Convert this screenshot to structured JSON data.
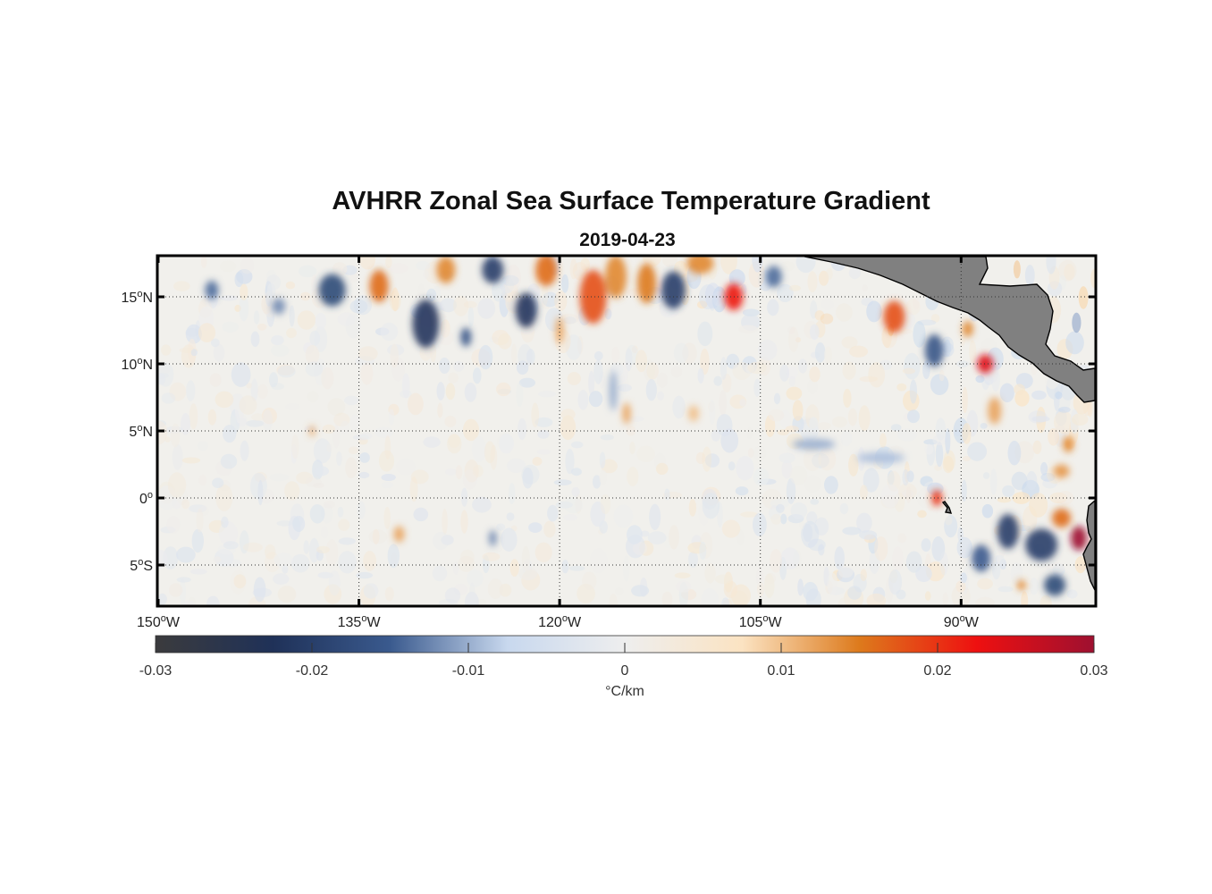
{
  "title": "AVHRR Zonal Sea Surface Temperature Gradient",
  "subtitle": "2019-04-23",
  "map": {
    "lon_range": [
      -150,
      -80
    ],
    "lat_range": [
      -8,
      18
    ],
    "gridlines": "dotted",
    "land_color": "#808080",
    "lon_ticks": [
      {
        "value": -150,
        "num": "150",
        "hem": "W"
      },
      {
        "value": -135,
        "num": "135",
        "hem": "W"
      },
      {
        "value": -120,
        "num": "120",
        "hem": "W"
      },
      {
        "value": -105,
        "num": "105",
        "hem": "W"
      },
      {
        "value": -90,
        "num": "90",
        "hem": "W"
      }
    ],
    "lat_ticks": [
      {
        "value": 15,
        "num": "15",
        "hem": "N"
      },
      {
        "value": 10,
        "num": "10",
        "hem": "N"
      },
      {
        "value": 5,
        "num": "5",
        "hem": "N"
      },
      {
        "value": 0,
        "num": "0",
        "hem": ""
      },
      {
        "value": -5,
        "num": "5",
        "hem": "S"
      }
    ],
    "degree_symbol": "o"
  },
  "colorbar": {
    "min": -0.03,
    "max": 0.03,
    "ticks": [
      "-0.03",
      "-0.02",
      "-0.01",
      "0",
      "0.01",
      "0.02",
      "0.03"
    ],
    "label": "°C/km",
    "colors": [
      "#3b3b3d",
      "#1f3158",
      "#3a5a8e",
      "#c8d8ee",
      "#eeeeee",
      "#fbe3c2",
      "#dd7a1c",
      "#ee1010",
      "#9e1030"
    ]
  },
  "features": [
    {
      "lon": -130,
      "lat": 13,
      "v": -0.022,
      "rx": 1.0,
      "ry": 1.8
    },
    {
      "lon": -137,
      "lat": 15.5,
      "v": -0.018,
      "rx": 1.0,
      "ry": 1.2
    },
    {
      "lon": -133.5,
      "lat": 15.8,
      "v": 0.016,
      "rx": 0.7,
      "ry": 1.2
    },
    {
      "lon": -128.5,
      "lat": 17,
      "v": 0.014,
      "rx": 0.7,
      "ry": 1.0
    },
    {
      "lon": -125,
      "lat": 17,
      "v": -0.02,
      "rx": 0.8,
      "ry": 1.0
    },
    {
      "lon": -122.5,
      "lat": 14,
      "v": -0.022,
      "rx": 0.8,
      "ry": 1.3
    },
    {
      "lon": -121,
      "lat": 17,
      "v": 0.016,
      "rx": 0.8,
      "ry": 1.2
    },
    {
      "lon": -117.5,
      "lat": 15,
      "v": 0.018,
      "rx": 1.0,
      "ry": 2.0
    },
    {
      "lon": -115.8,
      "lat": 16.5,
      "v": 0.014,
      "rx": 0.8,
      "ry": 1.6
    },
    {
      "lon": -113.5,
      "lat": 16,
      "v": 0.015,
      "rx": 0.7,
      "ry": 1.5
    },
    {
      "lon": -111.5,
      "lat": 15.5,
      "v": -0.02,
      "rx": 0.9,
      "ry": 1.4
    },
    {
      "lon": -107,
      "lat": 15,
      "v": 0.022,
      "rx": 0.7,
      "ry": 1.0
    },
    {
      "lon": -109.5,
      "lat": 17.5,
      "v": 0.014,
      "rx": 1.0,
      "ry": 0.8
    },
    {
      "lon": -104,
      "lat": 16.5,
      "v": -0.014,
      "rx": 0.6,
      "ry": 0.8
    },
    {
      "lon": -115,
      "lat": 6.3,
      "v": 0.012,
      "rx": 0.3,
      "ry": 0.8
    },
    {
      "lon": -110,
      "lat": 6.3,
      "v": 0.01,
      "rx": 0.4,
      "ry": 0.6
    },
    {
      "lon": -146,
      "lat": 15.5,
      "v": -0.014,
      "rx": 0.5,
      "ry": 0.7
    },
    {
      "lon": -141,
      "lat": 14.3,
      "v": -0.012,
      "rx": 0.5,
      "ry": 0.6
    },
    {
      "lon": -127,
      "lat": 12,
      "v": -0.016,
      "rx": 0.4,
      "ry": 0.7
    },
    {
      "lon": -95,
      "lat": 13.5,
      "v": 0.018,
      "rx": 0.8,
      "ry": 1.2
    },
    {
      "lon": -88.2,
      "lat": 10,
      "v": 0.024,
      "rx": 0.6,
      "ry": 0.7
    },
    {
      "lon": -92,
      "lat": 11,
      "v": -0.016,
      "rx": 0.7,
      "ry": 1.2
    },
    {
      "lon": -89.5,
      "lat": 12.6,
      "v": 0.014,
      "rx": 0.4,
      "ry": 0.6
    },
    {
      "lon": -87.5,
      "lat": 6.5,
      "v": 0.012,
      "rx": 0.5,
      "ry": 1.0
    },
    {
      "lon": -82,
      "lat": 4,
      "v": 0.014,
      "rx": 0.4,
      "ry": 0.6
    },
    {
      "lon": -82.5,
      "lat": 2,
      "v": 0.013,
      "rx": 0.6,
      "ry": 0.5
    },
    {
      "lon": -91.8,
      "lat": 0,
      "v": 0.02,
      "rx": 0.4,
      "ry": 0.6
    },
    {
      "lon": -81.2,
      "lat": -3,
      "v": 0.03,
      "rx": 0.6,
      "ry": 0.9
    },
    {
      "lon": -82.5,
      "lat": -1.5,
      "v": 0.016,
      "rx": 0.7,
      "ry": 0.7
    },
    {
      "lon": -84,
      "lat": -3.5,
      "v": -0.02,
      "rx": 1.2,
      "ry": 1.2
    },
    {
      "lon": -86.5,
      "lat": -2.5,
      "v": -0.02,
      "rx": 0.8,
      "ry": 1.3
    },
    {
      "lon": -83,
      "lat": -6.5,
      "v": -0.018,
      "rx": 0.8,
      "ry": 0.8
    },
    {
      "lon": -85.5,
      "lat": -6.5,
      "v": 0.014,
      "rx": 0.3,
      "ry": 0.4
    },
    {
      "lon": -88.5,
      "lat": -4.5,
      "v": -0.015,
      "rx": 0.7,
      "ry": 1.0
    },
    {
      "lon": -132,
      "lat": -2.7,
      "v": 0.012,
      "rx": 0.4,
      "ry": 0.6
    },
    {
      "lon": -125,
      "lat": -3,
      "v": -0.012,
      "rx": 0.3,
      "ry": 0.6
    },
    {
      "lon": -138.5,
      "lat": 5,
      "v": 0.012,
      "rx": 0.2,
      "ry": 0.4
    },
    {
      "lon": -120,
      "lat": 12.5,
      "v": 0.012,
      "rx": 0.3,
      "ry": 1.0
    },
    {
      "lon": -116,
      "lat": 8,
      "v": -0.01,
      "rx": 0.3,
      "ry": 1.5
    },
    {
      "lon": -101,
      "lat": 4,
      "v": -0.01,
      "rx": 1.6,
      "ry": 0.4
    },
    {
      "lon": -96,
      "lat": 3,
      "v": -0.009,
      "rx": 1.8,
      "ry": 0.4
    }
  ]
}
